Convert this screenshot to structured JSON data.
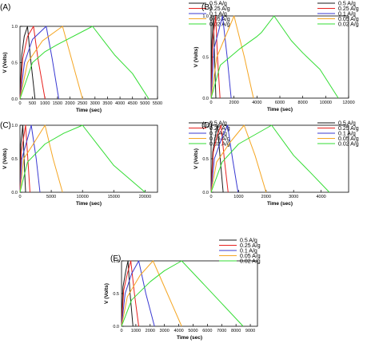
{
  "colors": {
    "s05": "#1a1a1a",
    "s025": "#e8211e",
    "s01": "#3a3ad2",
    "s005": "#f5a623",
    "s002": "#33dd33"
  },
  "chart_data": [
    {
      "type": "line",
      "panel": "(A)",
      "xlabel": "Time (sec)",
      "ylabel": "V (Volts)",
      "xlim": [
        0,
        5500
      ],
      "ylim": [
        0,
        1.0
      ],
      "xticks": [
        0,
        500,
        1000,
        1500,
        2000,
        2500,
        3000,
        3500,
        4000,
        4500,
        5000,
        5500
      ],
      "yticks": [
        0.0,
        0.5,
        1.0
      ],
      "grid": false,
      "legend": "top-right",
      "series": [
        {
          "name": "0.5 A/g",
          "color": "#1a1a1a",
          "points": [
            [
              0,
              0.0
            ],
            [
              70,
              0.6
            ],
            [
              170,
              0.86
            ],
            [
              300,
              1.0
            ],
            [
              410,
              0.6
            ],
            [
              600,
              0.0
            ]
          ]
        },
        {
          "name": "0.25 A/g",
          "color": "#e8211e",
          "points": [
            [
              0,
              0.0
            ],
            [
              110,
              0.55
            ],
            [
              300,
              0.86
            ],
            [
              540,
              1.0
            ],
            [
              720,
              0.55
            ],
            [
              1000,
              0.0
            ]
          ]
        },
        {
          "name": "0.1 A/g",
          "color": "#3a3ad2",
          "points": [
            [
              0,
              0.0
            ],
            [
              180,
              0.5
            ],
            [
              500,
              0.82
            ],
            [
              1050,
              1.0
            ],
            [
              1290,
              0.55
            ],
            [
              1550,
              0.0
            ]
          ]
        },
        {
          "name": "0.05 A/g",
          "color": "#f5a623",
          "points": [
            [
              0,
              0.0
            ],
            [
              300,
              0.5
            ],
            [
              900,
              0.8
            ],
            [
              1700,
              1.0
            ],
            [
              2100,
              0.5
            ],
            [
              2500,
              0.0
            ]
          ]
        },
        {
          "name": "0.02 A/g",
          "color": "#33dd33",
          "points": [
            [
              0,
              0.0
            ],
            [
              500,
              0.5
            ],
            [
              1000,
              0.65
            ],
            [
              1500,
              0.75
            ],
            [
              2900,
              1.0
            ],
            [
              3800,
              0.6
            ],
            [
              4500,
              0.35
            ],
            [
              5150,
              0.0
            ]
          ]
        }
      ]
    },
    {
      "type": "line",
      "panel": "(B)",
      "xlabel": "Time (sec)",
      "ylabel": "V (Volts)",
      "xlim": [
        0,
        12000
      ],
      "ylim": [
        0,
        1.0
      ],
      "xticks": [
        0,
        2000,
        4000,
        6000,
        8000,
        10000,
        12000
      ],
      "yticks": [
        0.0,
        0.5,
        1.0
      ],
      "grid": false,
      "legend": "top-right",
      "series": [
        {
          "name": "0.5 A/g",
          "color": "#1a1a1a",
          "points": [
            [
              0,
              0.0
            ],
            [
              80,
              0.7
            ],
            [
              200,
              1.0
            ],
            [
              300,
              0.5
            ],
            [
              420,
              0.0
            ]
          ]
        },
        {
          "name": "0.25 A/g",
          "color": "#e8211e",
          "points": [
            [
              0,
              0.0
            ],
            [
              150,
              0.7
            ],
            [
              400,
              1.0
            ],
            [
              560,
              0.5
            ],
            [
              780,
              0.0
            ]
          ]
        },
        {
          "name": "0.1 A/g",
          "color": "#3a3ad2",
          "points": [
            [
              0,
              0.0
            ],
            [
              250,
              0.6
            ],
            [
              1000,
              1.0
            ],
            [
              1400,
              0.5
            ],
            [
              1750,
              0.0
            ]
          ]
        },
        {
          "name": "0.05 A/g",
          "color": "#f5a623",
          "points": [
            [
              0,
              0.0
            ],
            [
              500,
              0.5
            ],
            [
              2000,
              1.0
            ],
            [
              2900,
              0.5
            ],
            [
              3700,
              0.0
            ]
          ]
        },
        {
          "name": "0.02 A/g",
          "color": "#33dd33",
          "points": [
            [
              0,
              0.0
            ],
            [
              800,
              0.4
            ],
            [
              2500,
              0.6
            ],
            [
              4000,
              0.75
            ],
            [
              4400,
              0.8
            ],
            [
              5500,
              1.0
            ],
            [
              7000,
              0.7
            ],
            [
              8000,
              0.55
            ],
            [
              9500,
              0.35
            ],
            [
              11100,
              0.0
            ]
          ]
        }
      ]
    },
    {
      "type": "line",
      "panel": "(C)",
      "xlabel": "Time (sec)",
      "ylabel": "V (Volts)",
      "xlim": [
        0,
        22000
      ],
      "ylim": [
        0,
        1.0
      ],
      "xticks": [
        0,
        5000,
        10000,
        15000,
        20000
      ],
      "yticks": [
        0.0,
        0.5,
        1.0
      ],
      "grid": false,
      "legend": "top-right",
      "series": [
        {
          "name": "0.5 A/g",
          "color": "#1a1a1a",
          "points": [
            [
              0,
              0.0
            ],
            [
              120,
              0.7
            ],
            [
              450,
              1.0
            ],
            [
              650,
              0.5
            ],
            [
              900,
              0.0
            ]
          ]
        },
        {
          "name": "0.25 A/g",
          "color": "#e8211e",
          "points": [
            [
              0,
              0.0
            ],
            [
              200,
              0.6
            ],
            [
              900,
              1.0
            ],
            [
              1250,
              0.5
            ],
            [
              1600,
              0.0
            ]
          ]
        },
        {
          "name": "0.1 A/g",
          "color": "#3a3ad2",
          "points": [
            [
              0,
              0.0
            ],
            [
              300,
              0.5
            ],
            [
              1800,
              1.0
            ],
            [
              2600,
              0.5
            ],
            [
              3200,
              0.0
            ]
          ]
        },
        {
          "name": "0.05 A/g",
          "color": "#f5a623",
          "points": [
            [
              0,
              0.0
            ],
            [
              600,
              0.5
            ],
            [
              2000,
              0.7
            ],
            [
              4000,
              1.0
            ],
            [
              5300,
              0.5
            ],
            [
              6800,
              0.0
            ]
          ]
        },
        {
          "name": "0.02 A/g",
          "color": "#33dd33",
          "points": [
            [
              0,
              0.0
            ],
            [
              1200,
              0.45
            ],
            [
              4000,
              0.72
            ],
            [
              7000,
              0.88
            ],
            [
              10000,
              1.0
            ],
            [
              12500,
              0.7
            ],
            [
              15000,
              0.4
            ],
            [
              20000,
              0.0
            ]
          ]
        }
      ]
    },
    {
      "type": "line",
      "panel": "(D)",
      "xlabel": "Time (sec)",
      "ylabel": "V (Volts)",
      "xlim": [
        0,
        5000
      ],
      "ylim": [
        0,
        1.0
      ],
      "xticks": [
        0,
        1000,
        2000,
        3000,
        4000
      ],
      "yticks": [
        0.0,
        0.5,
        1.0
      ],
      "grid": false,
      "legend": "top-right",
      "series": [
        {
          "name": "0.5 A/g",
          "color": "#1a1a1a",
          "points": [
            [
              0,
              0.0
            ],
            [
              60,
              0.6
            ],
            [
              160,
              0.85
            ],
            [
              230,
              1.0
            ],
            [
              330,
              0.5
            ],
            [
              440,
              0.0
            ]
          ]
        },
        {
          "name": "0.25 A/g",
          "color": "#e8211e",
          "points": [
            [
              0,
              0.0
            ],
            [
              80,
              0.6
            ],
            [
              220,
              0.85
            ],
            [
              360,
              1.0
            ],
            [
              480,
              0.5
            ],
            [
              620,
              0.0
            ]
          ]
        },
        {
          "name": "0.1 A/g",
          "color": "#3a3ad2",
          "points": [
            [
              0,
              0.0
            ],
            [
              120,
              0.5
            ],
            [
              380,
              0.8
            ],
            [
              600,
              1.0
            ],
            [
              780,
              0.5
            ],
            [
              980,
              0.0
            ]
          ]
        },
        {
          "name": "0.05 A/g",
          "color": "#f5a623",
          "points": [
            [
              0,
              0.0
            ],
            [
              200,
              0.45
            ],
            [
              700,
              0.75
            ],
            [
              1200,
              1.0
            ],
            [
              1600,
              0.55
            ],
            [
              2000,
              0.0
            ]
          ]
        },
        {
          "name": "0.02 A/g",
          "color": "#33dd33",
          "points": [
            [
              0,
              0.0
            ],
            [
              400,
              0.45
            ],
            [
              1000,
              0.72
            ],
            [
              2200,
              1.0
            ],
            [
              3000,
              0.55
            ],
            [
              3600,
              0.3
            ],
            [
              4300,
              0.0
            ]
          ]
        }
      ]
    },
    {
      "type": "line",
      "panel": "(E)",
      "xlabel": "Time (sec)",
      "ylabel": "V (Volts)",
      "xlim": [
        0,
        9500
      ],
      "ylim": [
        0,
        1.0
      ],
      "xticks": [
        0,
        1000,
        2000,
        3000,
        4000,
        5000,
        6000,
        7000,
        8000,
        9000
      ],
      "yticks": [
        0.0,
        0.5,
        1.0
      ],
      "grid": false,
      "legend": "top-right",
      "series": [
        {
          "name": "0.5 A/g",
          "color": "#1a1a1a",
          "points": [
            [
              0,
              0.0
            ],
            [
              100,
              0.6
            ],
            [
              300,
              0.85
            ],
            [
              450,
              1.0
            ],
            [
              600,
              0.5
            ],
            [
              800,
              0.0
            ]
          ]
        },
        {
          "name": "0.25 A/g",
          "color": "#e8211e",
          "points": [
            [
              0,
              0.0
            ],
            [
              150,
              0.55
            ],
            [
              400,
              0.8
            ],
            [
              650,
              1.0
            ],
            [
              900,
              0.5
            ],
            [
              1200,
              0.0
            ]
          ]
        },
        {
          "name": "0.1 A/g",
          "color": "#3a3ad2",
          "points": [
            [
              0,
              0.0
            ],
            [
              250,
              0.5
            ],
            [
              700,
              0.8
            ],
            [
              1200,
              1.0
            ],
            [
              1700,
              0.5
            ],
            [
              2300,
              0.0
            ]
          ]
        },
        {
          "name": "0.05 A/g",
          "color": "#f5a623",
          "points": [
            [
              0,
              0.0
            ],
            [
              400,
              0.45
            ],
            [
              1300,
              0.78
            ],
            [
              2200,
              1.0
            ],
            [
              3200,
              0.5
            ],
            [
              4200,
              0.0
            ]
          ]
        },
        {
          "name": "0.02 A/g",
          "color": "#33dd33",
          "points": [
            [
              0,
              0.0
            ],
            [
              700,
              0.4
            ],
            [
              2000,
              0.68
            ],
            [
              3000,
              0.85
            ],
            [
              4200,
              1.0
            ],
            [
              5500,
              0.7
            ],
            [
              7000,
              0.35
            ],
            [
              8500,
              0.0
            ]
          ]
        }
      ]
    }
  ]
}
